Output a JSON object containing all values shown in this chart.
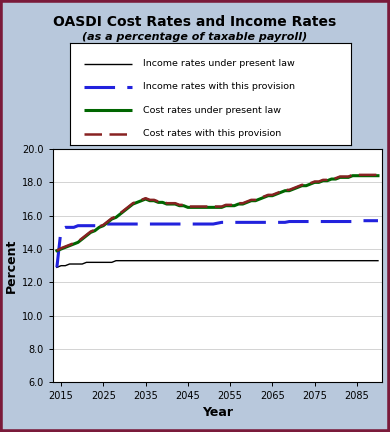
{
  "title": "OASDI Cost Rates and Income Rates",
  "subtitle": "(as a percentage of taxable payroll)",
  "xlabel": "Year",
  "ylabel": "Percent",
  "background_color": "#b8c8dc",
  "plot_background": "#ffffff",
  "border_color": "#7a1a3a",
  "ylim": [
    6.0,
    20.0
  ],
  "xlim": [
    2013,
    2091
  ],
  "yticks": [
    6.0,
    8.0,
    10.0,
    12.0,
    14.0,
    16.0,
    18.0,
    20.0
  ],
  "xticks": [
    2015,
    2025,
    2035,
    2045,
    2055,
    2065,
    2075,
    2085
  ],
  "legend_labels": [
    "Income rates under present law",
    "Income rates with this provision",
    "Cost rates under present law",
    "Cost rates with this provision"
  ],
  "years": [
    2014,
    2015,
    2016,
    2017,
    2018,
    2019,
    2020,
    2021,
    2022,
    2023,
    2024,
    2025,
    2026,
    2027,
    2028,
    2029,
    2030,
    2031,
    2032,
    2033,
    2034,
    2035,
    2036,
    2037,
    2038,
    2039,
    2040,
    2041,
    2042,
    2043,
    2044,
    2045,
    2046,
    2047,
    2048,
    2049,
    2050,
    2051,
    2052,
    2053,
    2054,
    2055,
    2056,
    2057,
    2058,
    2059,
    2060,
    2061,
    2062,
    2063,
    2064,
    2065,
    2066,
    2067,
    2068,
    2069,
    2070,
    2071,
    2072,
    2073,
    2074,
    2075,
    2076,
    2077,
    2078,
    2079,
    2080,
    2081,
    2082,
    2083,
    2084,
    2085,
    2086,
    2087,
    2088,
    2089,
    2090
  ],
  "income_present_law": [
    12.9,
    13.0,
    13.0,
    13.1,
    13.1,
    13.1,
    13.1,
    13.2,
    13.2,
    13.2,
    13.2,
    13.2,
    13.2,
    13.2,
    13.3,
    13.3,
    13.3,
    13.3,
    13.3,
    13.3,
    13.3,
    13.3,
    13.3,
    13.3,
    13.3,
    13.3,
    13.3,
    13.3,
    13.3,
    13.3,
    13.3,
    13.3,
    13.3,
    13.3,
    13.3,
    13.3,
    13.3,
    13.3,
    13.3,
    13.3,
    13.3,
    13.3,
    13.3,
    13.3,
    13.3,
    13.3,
    13.3,
    13.3,
    13.3,
    13.3,
    13.3,
    13.3,
    13.3,
    13.3,
    13.3,
    13.3,
    13.3,
    13.3,
    13.3,
    13.3,
    13.3,
    13.3,
    13.3,
    13.3,
    13.3,
    13.3,
    13.3,
    13.3,
    13.3,
    13.3,
    13.3,
    13.3,
    13.3,
    13.3,
    13.3,
    13.3,
    13.3
  ],
  "income_provision": [
    12.9,
    15.2,
    15.3,
    15.3,
    15.3,
    15.4,
    15.4,
    15.4,
    15.4,
    15.4,
    15.4,
    15.5,
    15.5,
    15.5,
    15.5,
    15.5,
    15.5,
    15.5,
    15.5,
    15.5,
    15.5,
    15.5,
    15.5,
    15.5,
    15.5,
    15.5,
    15.5,
    15.5,
    15.5,
    15.5,
    15.5,
    15.5,
    15.5,
    15.5,
    15.5,
    15.5,
    15.5,
    15.5,
    15.55,
    15.6,
    15.6,
    15.6,
    15.6,
    15.6,
    15.6,
    15.6,
    15.6,
    15.6,
    15.6,
    15.6,
    15.6,
    15.6,
    15.6,
    15.6,
    15.6,
    15.65,
    15.65,
    15.65,
    15.65,
    15.65,
    15.65,
    15.65,
    15.65,
    15.65,
    15.65,
    15.65,
    15.65,
    15.65,
    15.65,
    15.65,
    15.65,
    15.7,
    15.7,
    15.7,
    15.7,
    15.7,
    15.7
  ],
  "cost_present_law": [
    13.9,
    14.0,
    14.1,
    14.2,
    14.3,
    14.4,
    14.6,
    14.8,
    15.0,
    15.1,
    15.3,
    15.4,
    15.6,
    15.8,
    15.9,
    16.1,
    16.3,
    16.5,
    16.7,
    16.8,
    16.9,
    17.0,
    16.9,
    16.9,
    16.8,
    16.8,
    16.7,
    16.7,
    16.7,
    16.6,
    16.6,
    16.5,
    16.5,
    16.5,
    16.5,
    16.5,
    16.5,
    16.5,
    16.5,
    16.5,
    16.6,
    16.6,
    16.6,
    16.7,
    16.7,
    16.8,
    16.9,
    16.9,
    17.0,
    17.1,
    17.2,
    17.2,
    17.3,
    17.4,
    17.5,
    17.5,
    17.6,
    17.7,
    17.8,
    17.8,
    17.9,
    18.0,
    18.0,
    18.1,
    18.1,
    18.2,
    18.2,
    18.3,
    18.3,
    18.3,
    18.4,
    18.4,
    18.4,
    18.4,
    18.4,
    18.4,
    18.4
  ],
  "cost_provision": [
    13.9,
    14.05,
    14.15,
    14.25,
    14.35,
    14.45,
    14.65,
    14.85,
    15.05,
    15.15,
    15.35,
    15.45,
    15.65,
    15.85,
    15.95,
    16.15,
    16.35,
    16.55,
    16.75,
    16.85,
    16.95,
    17.05,
    16.95,
    16.95,
    16.85,
    16.85,
    16.75,
    16.75,
    16.75,
    16.65,
    16.65,
    16.55,
    16.55,
    16.55,
    16.55,
    16.55,
    16.55,
    16.55,
    16.55,
    16.55,
    16.65,
    16.65,
    16.65,
    16.75,
    16.75,
    16.85,
    16.95,
    16.95,
    17.05,
    17.15,
    17.25,
    17.25,
    17.35,
    17.45,
    17.55,
    17.55,
    17.65,
    17.75,
    17.85,
    17.85,
    17.95,
    18.05,
    18.05,
    18.15,
    18.15,
    18.25,
    18.25,
    18.35,
    18.35,
    18.35,
    18.45,
    18.45,
    18.45,
    18.45,
    18.45,
    18.45,
    18.45
  ]
}
